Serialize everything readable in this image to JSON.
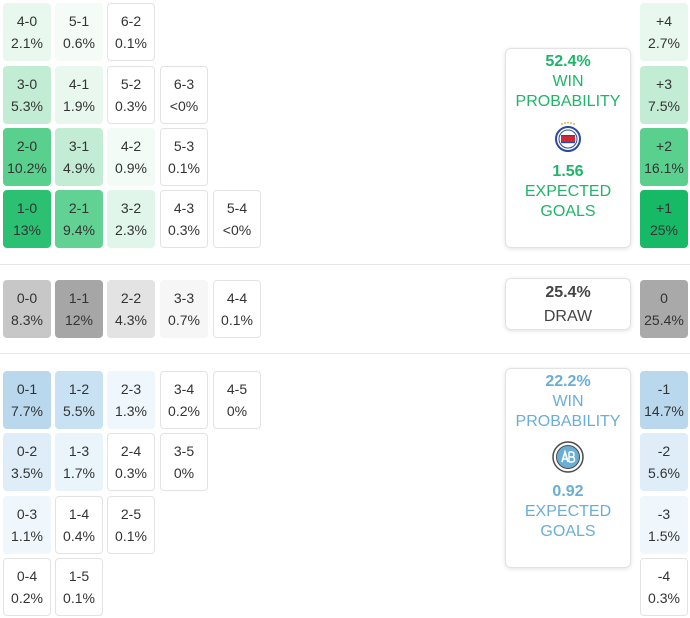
{
  "colors": {
    "home_accent": "#1eb56a",
    "away_accent": "#6aaed6",
    "draw_text": "#444444"
  },
  "home_scores": [
    {
      "score": "4-0",
      "pct": "2.1%",
      "bg": "#e8f8ef"
    },
    {
      "score": "5-1",
      "pct": "0.6%",
      "bg": "#f5fcf8"
    },
    {
      "score": "6-2",
      "pct": "0.1%",
      "bg": "#ffffff"
    },
    {
      "score": "3-0",
      "pct": "5.3%",
      "bg": "#c3ecd5"
    },
    {
      "score": "4-1",
      "pct": "1.9%",
      "bg": "#e8f8ef"
    },
    {
      "score": "5-2",
      "pct": "0.3%",
      "bg": "#ffffff"
    },
    {
      "score": "6-3",
      "pct": "<0%",
      "bg": "#ffffff"
    },
    {
      "score": "2-0",
      "pct": "10.2%",
      "bg": "#59d08e"
    },
    {
      "score": "3-1",
      "pct": "4.9%",
      "bg": "#c3ecd5"
    },
    {
      "score": "4-2",
      "pct": "0.9%",
      "bg": "#f2fbf6"
    },
    {
      "score": "5-3",
      "pct": "0.1%",
      "bg": "#ffffff"
    },
    {
      "score": "1-0",
      "pct": "13%",
      "bg": "#2cc172"
    },
    {
      "score": "2-1",
      "pct": "9.4%",
      "bg": "#61d293"
    },
    {
      "score": "3-2",
      "pct": "2.3%",
      "bg": "#e1f6ea"
    },
    {
      "score": "4-3",
      "pct": "0.3%",
      "bg": "#ffffff"
    },
    {
      "score": "5-4",
      "pct": "<0%",
      "bg": "#ffffff"
    }
  ],
  "draw_scores": [
    {
      "score": "0-0",
      "pct": "8.3%",
      "bg": "#c7c7c7"
    },
    {
      "score": "1-1",
      "pct": "12%",
      "bg": "#a6a6a6"
    },
    {
      "score": "2-2",
      "pct": "4.3%",
      "bg": "#e3e3e3"
    },
    {
      "score": "3-3",
      "pct": "0.7%",
      "bg": "#f6f6f6"
    },
    {
      "score": "4-4",
      "pct": "0.1%",
      "bg": "#ffffff"
    }
  ],
  "away_scores": [
    {
      "score": "0-1",
      "pct": "7.7%",
      "bg": "#b9d8ee"
    },
    {
      "score": "1-2",
      "pct": "5.5%",
      "bg": "#c9e2f3"
    },
    {
      "score": "2-3",
      "pct": "1.3%",
      "bg": "#f0f7fc"
    },
    {
      "score": "3-4",
      "pct": "0.2%",
      "bg": "#ffffff"
    },
    {
      "score": "4-5",
      "pct": "0%",
      "bg": "#ffffff"
    },
    {
      "score": "0-2",
      "pct": "3.5%",
      "bg": "#deedf8"
    },
    {
      "score": "1-3",
      "pct": "1.7%",
      "bg": "#eaf4fb"
    },
    {
      "score": "2-4",
      "pct": "0.3%",
      "bg": "#ffffff"
    },
    {
      "score": "3-5",
      "pct": "0%",
      "bg": "#ffffff"
    },
    {
      "score": "0-3",
      "pct": "1.1%",
      "bg": "#f0f7fc"
    },
    {
      "score": "1-4",
      "pct": "0.4%",
      "bg": "#ffffff"
    },
    {
      "score": "2-5",
      "pct": "0.1%",
      "bg": "#ffffff"
    },
    {
      "score": "0-4",
      "pct": "0.2%",
      "bg": "#ffffff"
    },
    {
      "score": "1-5",
      "pct": "0.1%",
      "bg": "#ffffff"
    }
  ],
  "margins": [
    {
      "label": "+4",
      "pct": "2.7%",
      "bg": "#e8f8ef"
    },
    {
      "label": "+3",
      "pct": "7.5%",
      "bg": "#c3ecd5"
    },
    {
      "label": "+2",
      "pct": "16.1%",
      "bg": "#59d08e"
    },
    {
      "label": "+1",
      "pct": "25%",
      "bg": "#16b965"
    },
    {
      "label": "0",
      "pct": "25.4%",
      "bg": "#a9a9a9"
    },
    {
      "label": "-1",
      "pct": "14.7%",
      "bg": "#b9d8ee"
    },
    {
      "label": "-2",
      "pct": "5.6%",
      "bg": "#deedf8"
    },
    {
      "label": "-3",
      "pct": "1.5%",
      "bg": "#f0f7fc"
    },
    {
      "label": "-4",
      "pct": "0.3%",
      "bg": "#ffffff"
    }
  ],
  "home_card": {
    "win_pct": "52.4%",
    "win_label_1": "WIN",
    "win_label_2": "PROBABILITY",
    "xg": "1.56",
    "xg_label_1": "EXPECTED",
    "xg_label_2": "GOALS",
    "logo_icon": "team-crest-icon"
  },
  "draw_card": {
    "pct": "25.4%",
    "label": "DRAW"
  },
  "away_card": {
    "win_pct": "22.2%",
    "win_label_1": "WIN",
    "win_label_2": "PROBABILITY",
    "xg": "0.92",
    "xg_label_1": "EXPECTED",
    "xg_label_2": "GOALS",
    "logo_icon": "team-crest-icon"
  }
}
